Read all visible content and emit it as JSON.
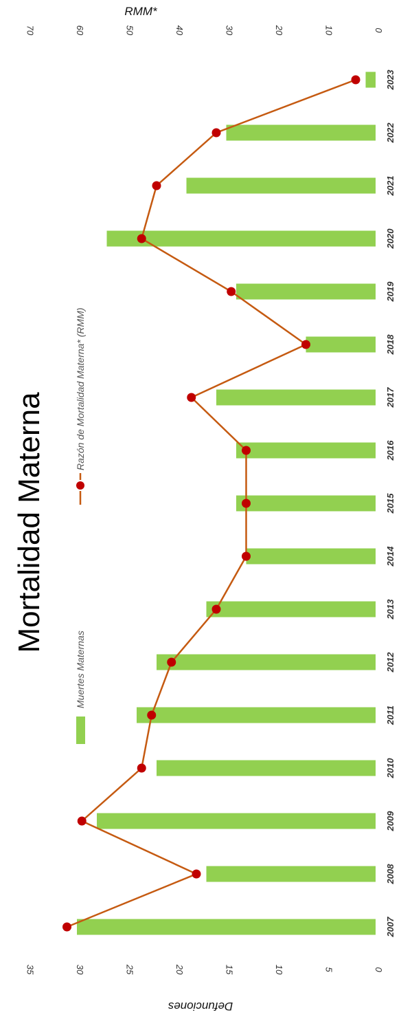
{
  "chart_data": {
    "type": "bar",
    "title": "Mortalidad Materna",
    "categories": [
      "2007",
      "2008",
      "2009",
      "2010",
      "2011",
      "2012",
      "2013",
      "2014",
      "2015",
      "2016",
      "2017",
      "2018",
      "2019",
      "2020",
      "2021",
      "2022",
      "2023"
    ],
    "series": [
      {
        "name": "Muertes Maternas",
        "type": "bar",
        "axis": "left",
        "color": "#92d050",
        "values": [
          30,
          17,
          28,
          22,
          24,
          22,
          17,
          13,
          14,
          14,
          16,
          7,
          14,
          27,
          19,
          15,
          1
        ]
      },
      {
        "name": "Razón de Mortalidad Materna* (RMM)",
        "type": "line",
        "axis": "right",
        "line_color": "#c55a11",
        "marker_color": "#c00000",
        "values": [
          62,
          36,
          59,
          47,
          45,
          41,
          32,
          26,
          26,
          26,
          37,
          14,
          29,
          47,
          44,
          32,
          4
        ]
      }
    ],
    "left_axis": {
      "label": "Defunciones",
      "ticks": [
        "0",
        "5",
        "10",
        "15",
        "20",
        "25",
        "30",
        "35"
      ],
      "range": [
        0,
        35
      ]
    },
    "right_axis": {
      "label": "RMM*",
      "ticks": [
        "0",
        "10",
        "20",
        "30",
        "40",
        "50",
        "60",
        "70"
      ],
      "range": [
        0,
        70
      ]
    },
    "orientation": "rotated 90° clockwise",
    "legend_position": "left",
    "grid": false
  }
}
